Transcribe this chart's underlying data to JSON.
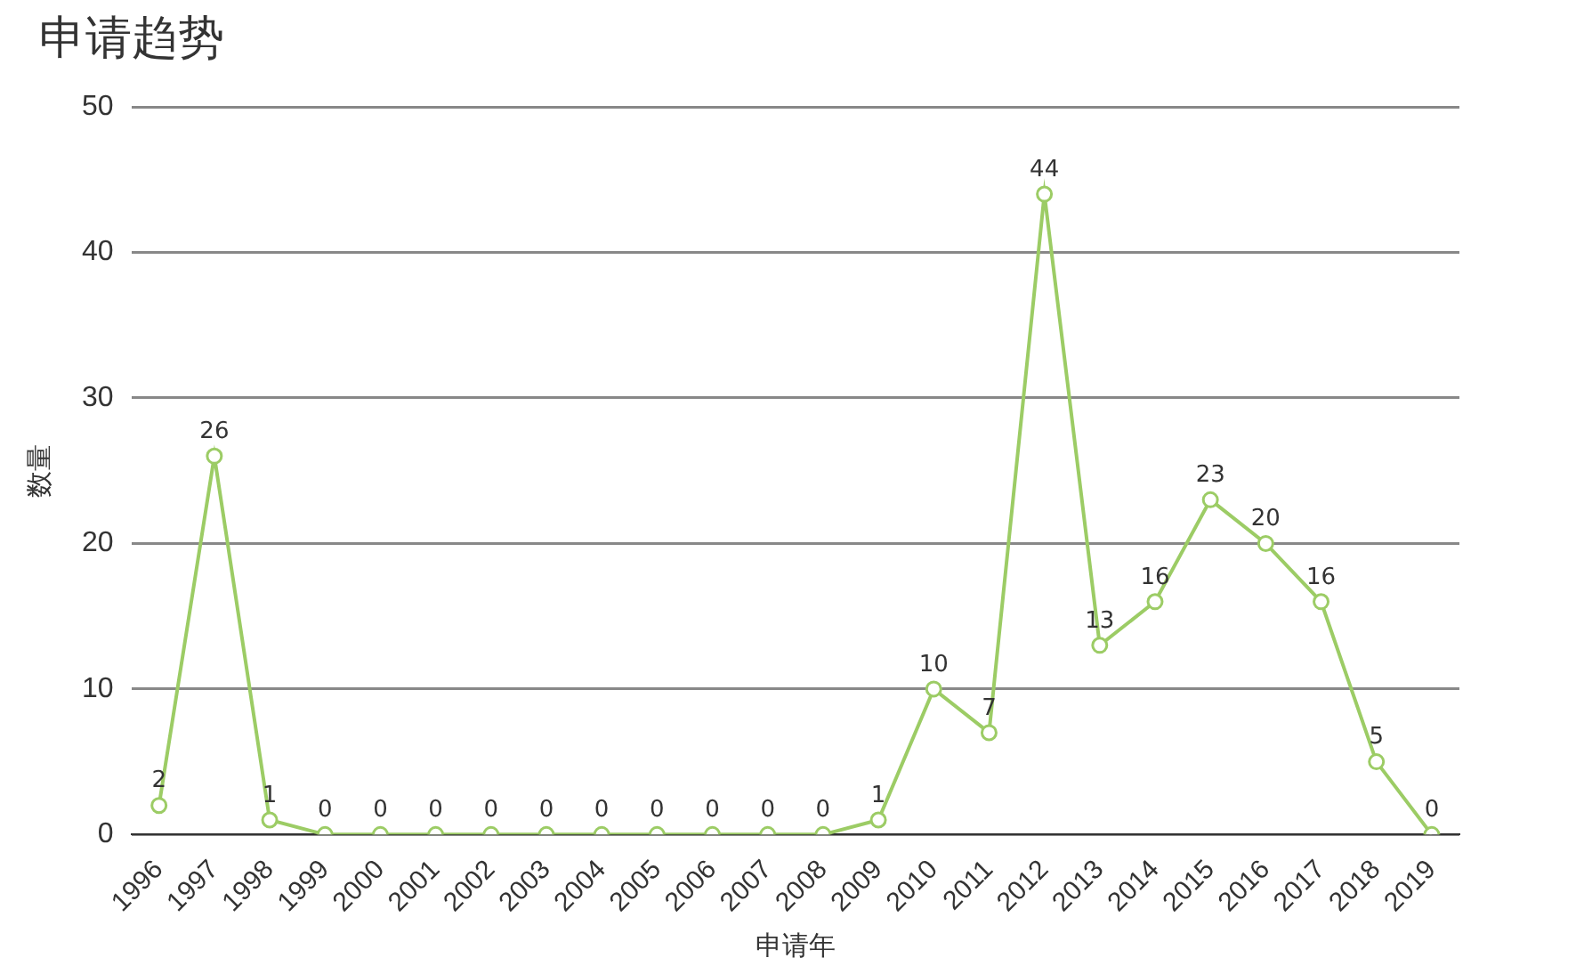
{
  "chart_data": {
    "type": "line",
    "title": "申请趋势",
    "xlabel": "申请年",
    "ylabel": "数量",
    "categories": [
      "1996",
      "1997",
      "1998",
      "1999",
      "2000",
      "2001",
      "2002",
      "2003",
      "2004",
      "2005",
      "2006",
      "2007",
      "2008",
      "2009",
      "2010",
      "2011",
      "2012",
      "2013",
      "2014",
      "2015",
      "2016",
      "2017",
      "2018",
      "2019"
    ],
    "series": [
      {
        "color": "#9ccc65",
        "values": [
          2,
          26,
          1,
          0,
          0,
          0,
          0,
          0,
          0,
          0,
          0,
          0,
          0,
          1,
          10,
          7,
          44,
          13,
          16,
          23,
          20,
          16,
          5,
          0
        ]
      }
    ],
    "ylim": [
      0,
      50
    ],
    "yticks": [
      0,
      10,
      20,
      30,
      40,
      50
    ],
    "grid": "y",
    "legend": false,
    "marker": "circle",
    "line_style": "solid",
    "data_labels": true
  }
}
